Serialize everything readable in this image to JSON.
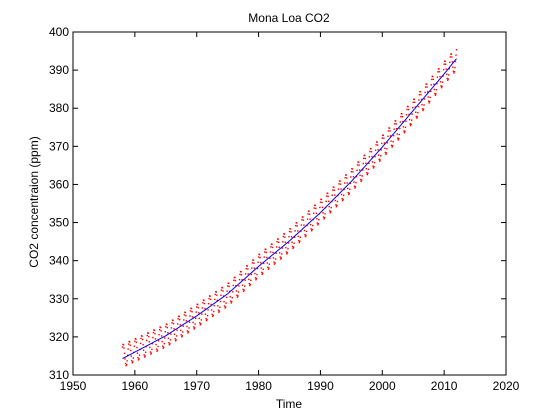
{
  "chart_data": {
    "type": "line",
    "title": "Mona Loa CO2",
    "xlabel": "Time",
    "ylabel": "CO2 concentraion (ppm)",
    "xlim": [
      1950,
      2020
    ],
    "ylim": [
      310,
      400
    ],
    "xticks": [
      1950,
      1960,
      1970,
      1980,
      1990,
      2000,
      2010,
      2020
    ],
    "yticks": [
      310,
      320,
      330,
      340,
      350,
      360,
      370,
      380,
      390,
      400
    ],
    "grid": false,
    "legend": "none",
    "series": [
      {
        "style": "red dotted (monthly observations)",
        "color": "#ff0000",
        "x_range": [
          1958,
          2012
        ],
        "trend_x": [
          1958,
          1960,
          1965,
          1970,
          1975,
          1980,
          1985,
          1990,
          1995,
          2000,
          2005,
          2010,
          2012
        ],
        "trend_y": [
          315.0,
          316.5,
          320.3,
          325.5,
          331.0,
          338.6,
          345.3,
          353.0,
          361.0,
          369.8,
          379.2,
          389.2,
          393.0
        ],
        "seasonal_amplitude": 3
      },
      {
        "style": "blue solid (fitted trend)",
        "color": "#0000ff",
        "x": [
          1958,
          1960,
          1965,
          1970,
          1975,
          1980,
          1985,
          1990,
          1995,
          2000,
          2005,
          2010,
          2012
        ],
        "y": [
          314.3,
          316.0,
          320.3,
          325.5,
          331.3,
          338.5,
          345.2,
          352.6,
          360.8,
          369.8,
          379.4,
          389.0,
          393.0
        ]
      }
    ]
  }
}
